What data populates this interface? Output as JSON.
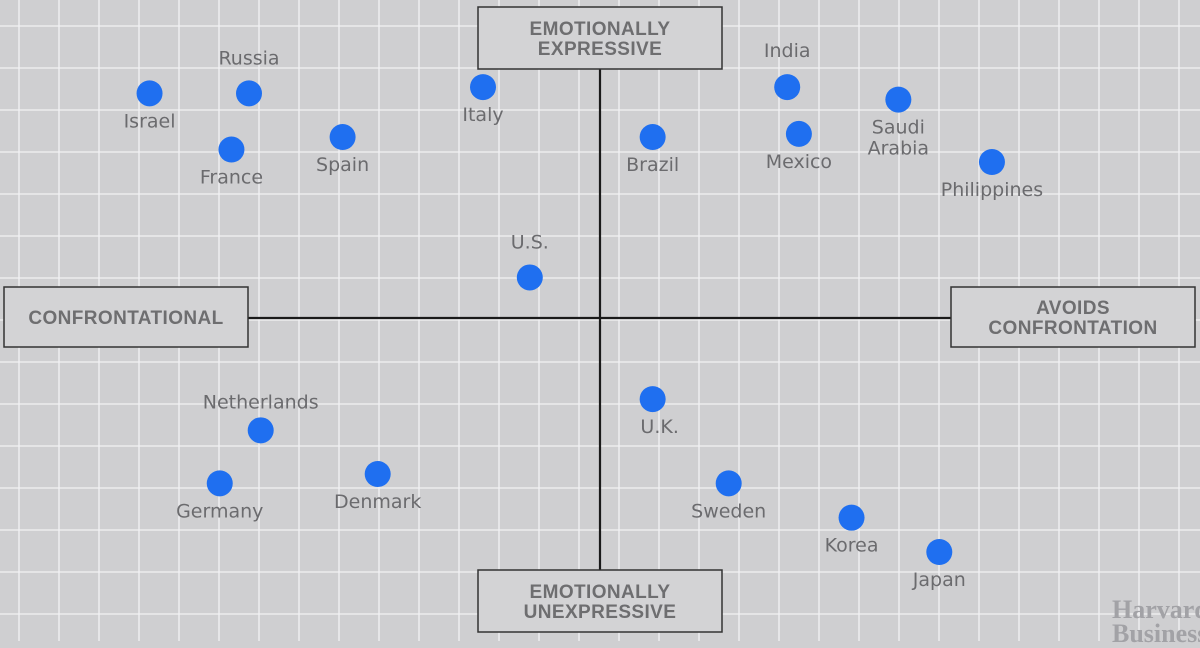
{
  "chart_data": {
    "type": "scatter",
    "x_axis": {
      "left_label": "CONFRONTATIONAL",
      "right_label": [
        "AVOIDS",
        "CONFRONTATION"
      ]
    },
    "y_axis": {
      "top_label": [
        "EMOTIONALLY",
        "EXPRESSIVE"
      ],
      "bottom_label": [
        "EMOTIONALLY",
        "UNEXPRESSIVE"
      ]
    },
    "xlim": [
      -10,
      10
    ],
    "ylim": [
      -10,
      10
    ],
    "grid": true,
    "points": [
      {
        "label": [
          "Israel"
        ],
        "x": -7.7,
        "y": 7.2
      },
      {
        "label": [
          "Russia"
        ],
        "x": -6.0,
        "y": 7.2
      },
      {
        "label": [
          "France"
        ],
        "x": -6.3,
        "y": 5.4
      },
      {
        "label": [
          "Spain"
        ],
        "x": -4.4,
        "y": 5.8
      },
      {
        "label": [
          "Italy"
        ],
        "x": -2.0,
        "y": 7.4
      },
      {
        "label": [
          "U.S."
        ],
        "x": -1.2,
        "y": 1.3
      },
      {
        "label": [
          "Brazil"
        ],
        "x": 0.9,
        "y": 5.8
      },
      {
        "label": [
          "India"
        ],
        "x": 3.2,
        "y": 7.4
      },
      {
        "label": [
          "Mexico"
        ],
        "x": 3.4,
        "y": 5.9
      },
      {
        "label": [
          "Saudi",
          "Arabia"
        ],
        "x": 5.1,
        "y": 7.0
      },
      {
        "label": [
          "Philippines"
        ],
        "x": 6.7,
        "y": 5.0
      },
      {
        "label": [
          "Netherlands"
        ],
        "x": -5.8,
        "y": -3.6
      },
      {
        "label": [
          "Germany"
        ],
        "x": -6.5,
        "y": -5.3
      },
      {
        "label": [
          "Denmark"
        ],
        "x": -3.8,
        "y": -5.0
      },
      {
        "label": [
          "U.K."
        ],
        "x": 0.9,
        "y": -2.6
      },
      {
        "label": [
          "Sweden"
        ],
        "x": 2.2,
        "y": -5.3
      },
      {
        "label": [
          "Korea"
        ],
        "x": 4.3,
        "y": -6.4
      },
      {
        "label": [
          "Japan"
        ],
        "x": 5.8,
        "y": -7.5
      }
    ]
  },
  "watermark": [
    "Harvard",
    "Business"
  ]
}
